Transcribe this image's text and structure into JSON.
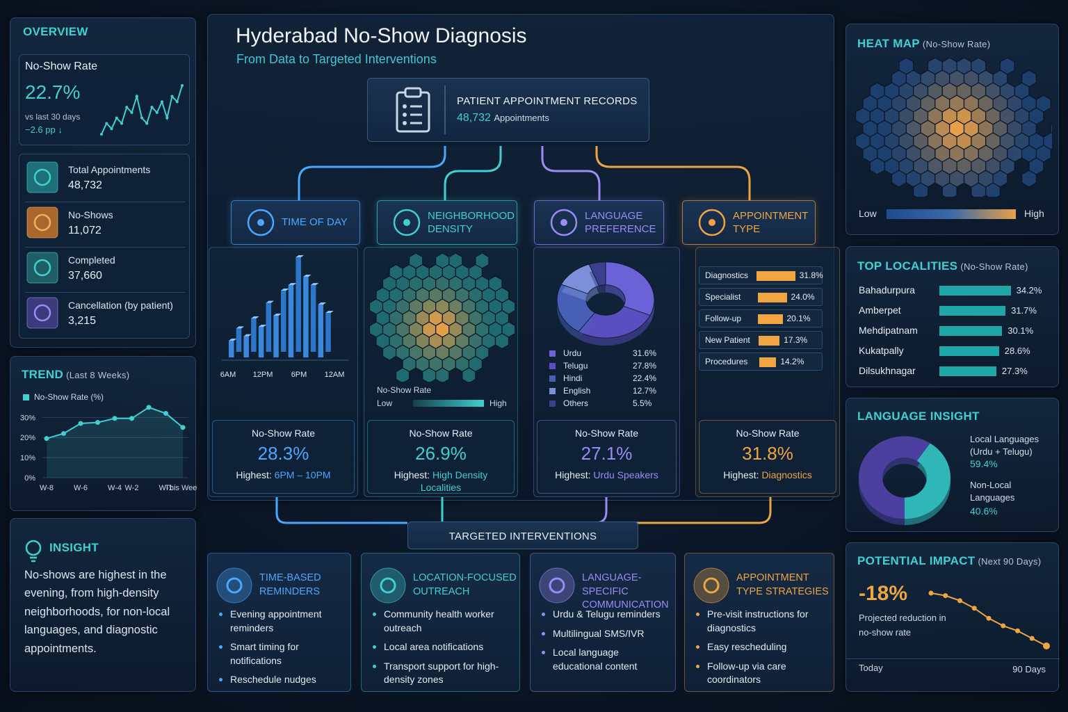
{
  "header": {
    "title": "Hyderabad No-Show Diagnosis",
    "subtitle": "From Data to Targeted Interventions"
  },
  "records": {
    "title": "PATIENT APPOINTMENT RECORDS",
    "count": "48,732",
    "unit": "Appointments"
  },
  "overview": {
    "title": "OVERVIEW",
    "rate_label": "No-Show Rate",
    "rate": "22.7%",
    "compare": "vs last 30 days",
    "delta": "−2.6 pp ↓",
    "sparkline": [
      20,
      22,
      21,
      23,
      22,
      25,
      24,
      27,
      23,
      22,
      25,
      24,
      26,
      23,
      27,
      26,
      29
    ],
    "stats": [
      {
        "label": "Total Appointments",
        "value": "48,732"
      },
      {
        "label": "No-Shows",
        "value": "11,072"
      },
      {
        "label": "Completed",
        "value": "37,660"
      },
      {
        "label": "Cancellation (by patient)",
        "value": "3,215"
      }
    ]
  },
  "trend": {
    "title": "TREND",
    "period": "(Last 8 Weeks)",
    "legend": "No-Show Rate (%)",
    "categories": [
      "W-8",
      null,
      "W-6",
      null,
      "W-4",
      "W-2",
      null,
      "W-1",
      "This Week"
    ],
    "values": [
      19.5,
      22,
      27,
      27.5,
      29.5,
      29.5,
      35,
      32,
      25
    ],
    "ylim": [
      0,
      36
    ],
    "yticks": [
      {
        "value": 0,
        "label": "0%"
      },
      {
        "value": 10,
        "label": "10%"
      },
      {
        "value": 20,
        "label": "20%"
      },
      {
        "value": 30,
        "label": "30%"
      }
    ]
  },
  "insight": {
    "title": "INSIGHT",
    "text": "No-shows are highest in the evening, from high-density neighborhoods, for non-local languages, and diagnostic appointments."
  },
  "factors": [
    {
      "title": "TIME OF DAY",
      "rate_label": "No-Show Rate",
      "rate": "28.3%",
      "highest_label": "Highest:",
      "highest": "6PM – 10PM"
    },
    {
      "title": "NEIGHBORHOOD DENSITY",
      "rate_label": "No-Show Rate",
      "rate": "26.9%",
      "highest_label": "Highest:",
      "highest": "High Density Localities"
    },
    {
      "title": "LANGUAGE PREFERENCE",
      "rate_label": "No-Show Rate",
      "rate": "27.1%",
      "highest_label": "Highest:",
      "highest": "Urdu Speakers"
    },
    {
      "title": "APPOINTMENT TYPE",
      "rate_label": "No-Show Rate",
      "rate": "31.8%",
      "highest_label": "Highest:",
      "highest": "Diagnostics"
    }
  ],
  "time_of_day": {
    "hours": [
      "6AM",
      "12PM",
      "6PM",
      "12AM"
    ],
    "bars": [
      30,
      42,
      38,
      60,
      55,
      88,
      75,
      110,
      130,
      170,
      145,
      120,
      95,
      70
    ]
  },
  "density": {
    "legend_title": "No-Show Rate",
    "low": "Low",
    "high": "High"
  },
  "languages": {
    "names": [
      "Urdu",
      "Telugu",
      "Hindi",
      "English",
      "Others"
    ],
    "values": [
      31.6,
      27.8,
      22.4,
      12.7,
      5.5
    ],
    "value_labels": [
      "31.6%",
      "27.8%",
      "22.4%",
      "12.7%",
      "5.5%"
    ],
    "colors": [
      "#6a62d6",
      "#5a4fc0",
      "#4760b5",
      "#7c8fd8",
      "#3b3f8e"
    ]
  },
  "appointment_types": {
    "names": [
      "Diagnostics",
      "Specialist",
      "Follow-up",
      "New Patient",
      "Procedures"
    ],
    "values": [
      31.8,
      24.0,
      20.1,
      17.3,
      14.2
    ],
    "value_labels": [
      "31.8%",
      "24.0%",
      "20.1%",
      "17.3%",
      "14.2%"
    ]
  },
  "interventions": {
    "title": "TARGETED INTERVENTIONS",
    "cards": [
      {
        "title": "TIME-BASED REMINDERS",
        "items": [
          "Evening appointment reminders",
          "Smart timing for notifications",
          "Reschedule nudges"
        ]
      },
      {
        "title": "LOCATION-FOCUSED OUTREACH",
        "items": [
          "Community health worker outreach",
          "Local area notifications",
          "Transport support for high-density zones"
        ]
      },
      {
        "title": "LANGUAGE-SPECIFIC COMMUNICATION",
        "items": [
          "Urdu & Telugu reminders",
          "Multilingual SMS/IVR",
          "Local language educational content"
        ]
      },
      {
        "title": "APPOINTMENT TYPE STRATEGIES",
        "items": [
          "Pre-visit instructions for diagnostics",
          "Easy rescheduling",
          "Follow-up via care coordinators"
        ]
      }
    ]
  },
  "heat_map": {
    "title": "HEAT MAP",
    "note": "(No-Show Rate)",
    "low": "Low",
    "high": "High"
  },
  "top_localities": {
    "title": "TOP LOCALITIES",
    "note": "(No-Show Rate)",
    "names": [
      "Bahadurpura",
      "Amberpet",
      "Mehdipatnam",
      "Kukatpally",
      "Dilsukhnagar"
    ],
    "values": [
      34.2,
      31.7,
      30.1,
      28.6,
      27.3
    ],
    "value_labels": [
      "34.2%",
      "31.7%",
      "30.1%",
      "28.6%",
      "27.3%"
    ]
  },
  "language_insight": {
    "title": "LANGUAGE INSIGHT",
    "names": [
      "Local Languages (Urdu + Telugu)",
      "Non-Local Languages"
    ],
    "values": [
      59.4,
      40.6
    ],
    "value_labels": [
      "59.4%",
      "40.6%"
    ],
    "colors": [
      "#4b3fa0",
      "#2fb7b8"
    ]
  },
  "impact": {
    "title": "POTENTIAL IMPACT",
    "note": "(Next 90 Days)",
    "value": "-18%",
    "text": "Projected reduction in no-show rate",
    "start": "Today",
    "end": "90 Days",
    "trend": [
      100,
      99,
      97,
      94,
      90,
      87,
      85,
      82,
      79
    ]
  }
}
